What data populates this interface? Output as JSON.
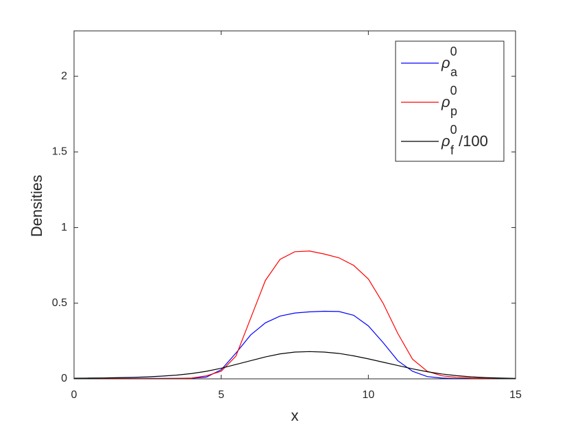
{
  "chart_data": {
    "type": "line",
    "xlabel": "x",
    "ylabel": "Densities",
    "x": [
      0,
      0.5,
      1,
      1.5,
      2,
      2.5,
      3,
      3.5,
      4,
      4.5,
      5,
      5.5,
      6,
      6.5,
      7,
      7.5,
      8,
      8.5,
      9,
      9.5,
      10,
      10.5,
      11,
      11.5,
      12,
      12.5,
      13,
      13.5,
      14,
      14.5,
      15
    ],
    "series": [
      {
        "name": "ρ",
        "subscript": "a",
        "superscript": "0",
        "color": "#0000ff",
        "values": [
          0.003,
          0.003,
          0.003,
          0.003,
          0.003,
          0.003,
          0.003,
          0.003,
          0.004,
          0.012,
          0.06,
          0.17,
          0.29,
          0.37,
          0.415,
          0.435,
          0.443,
          0.447,
          0.445,
          0.42,
          0.35,
          0.24,
          0.12,
          0.05,
          0.015,
          0.005,
          0.002,
          0.001,
          0.001,
          0.001,
          0.001
        ]
      },
      {
        "name": "ρ",
        "subscript": "p",
        "superscript": "0",
        "color": "#ff0000",
        "values": [
          0.002,
          0.002,
          0.002,
          0.002,
          0.002,
          0.002,
          0.002,
          0.003,
          0.005,
          0.02,
          0.05,
          0.15,
          0.4,
          0.65,
          0.79,
          0.84,
          0.845,
          0.825,
          0.8,
          0.75,
          0.66,
          0.5,
          0.3,
          0.13,
          0.05,
          0.02,
          0.01,
          0.005,
          0.003,
          0.002,
          0.001
        ]
      },
      {
        "name": "ρ",
        "subscript": "f",
        "superscript": "0",
        "suffix": "/100",
        "color": "#000000",
        "values": [
          0.004,
          0.005,
          0.006,
          0.008,
          0.01,
          0.013,
          0.018,
          0.025,
          0.035,
          0.05,
          0.07,
          0.095,
          0.12,
          0.145,
          0.165,
          0.177,
          0.18,
          0.177,
          0.168,
          0.152,
          0.132,
          0.11,
          0.088,
          0.066,
          0.047,
          0.032,
          0.021,
          0.013,
          0.008,
          0.005,
          0.003
        ]
      }
    ],
    "xlim": [
      0,
      15
    ],
    "xticks": [
      0,
      5,
      10,
      15
    ],
    "ylim": [
      0,
      2.3
    ],
    "yticks": [
      0,
      0.5,
      1,
      1.5,
      2
    ],
    "legend": "upper right"
  }
}
